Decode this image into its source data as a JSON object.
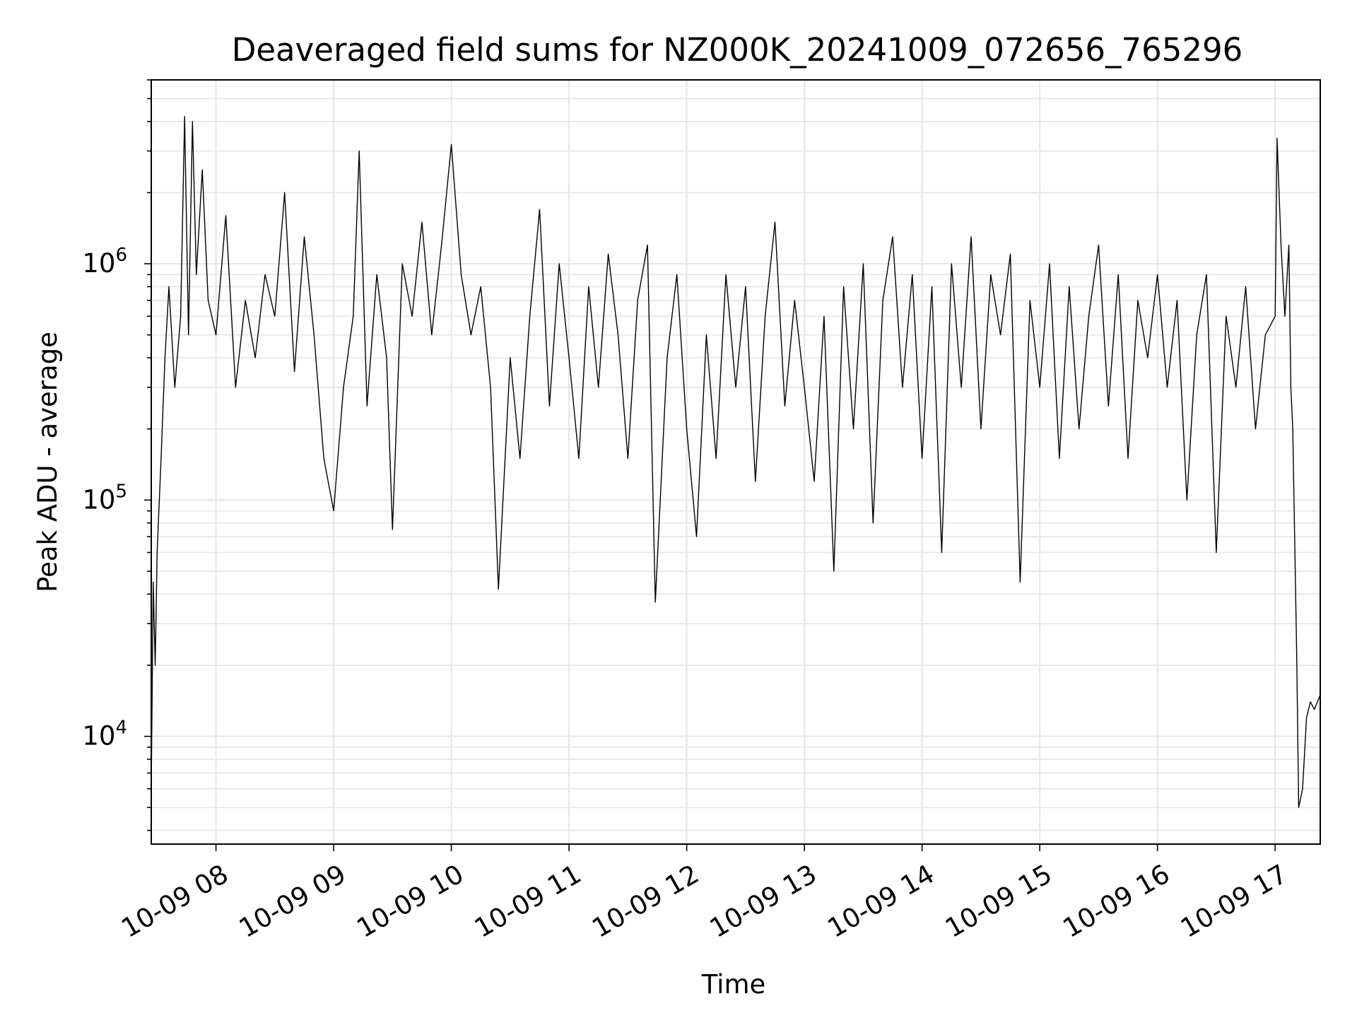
{
  "chart_data": {
    "type": "line",
    "title": "Deaveraged field sums for NZ000K_20241009_072656_765296",
    "xlabel": "Time",
    "ylabel": "Peak ADU - average",
    "yscale": "log",
    "xlim": [
      "10-09 07:27",
      "10-09 17:23"
    ],
    "ylim": [
      3500,
      6000000
    ],
    "grid": true,
    "line_color": "#000000",
    "grid_color": "#e6e6e6",
    "x_ticks": [
      {
        "time": "10-09 08:00",
        "label": "10-09 08"
      },
      {
        "time": "10-09 09:00",
        "label": "10-09 09"
      },
      {
        "time": "10-09 10:00",
        "label": "10-09 10"
      },
      {
        "time": "10-09 11:00",
        "label": "10-09 11"
      },
      {
        "time": "10-09 12:00",
        "label": "10-09 12"
      },
      {
        "time": "10-09 13:00",
        "label": "10-09 13"
      },
      {
        "time": "10-09 14:00",
        "label": "10-09 14"
      },
      {
        "time": "10-09 15:00",
        "label": "10-09 15"
      },
      {
        "time": "10-09 16:00",
        "label": "10-09 16"
      },
      {
        "time": "10-09 17:00",
        "label": "10-09 17"
      }
    ],
    "y_ticks": [
      {
        "value": 10000,
        "base": "10",
        "exp": "4"
      },
      {
        "value": 100000,
        "base": "10",
        "exp": "5"
      },
      {
        "value": 1000000,
        "base": "10",
        "exp": "6"
      }
    ],
    "series": [
      {
        "points": [
          [
            "10-09 07:27",
            6000
          ],
          [
            "10-09 07:28",
            45000
          ],
          [
            "10-09 07:29",
            20000
          ],
          [
            "10-09 07:30",
            60000
          ],
          [
            "10-09 07:32",
            150000
          ],
          [
            "10-09 07:34",
            400000
          ],
          [
            "10-09 07:36",
            800000
          ],
          [
            "10-09 07:39",
            300000
          ],
          [
            "10-09 07:42",
            600000
          ],
          [
            "10-09 07:44",
            4200000
          ],
          [
            "10-09 07:46",
            500000
          ],
          [
            "10-09 07:48",
            4000000
          ],
          [
            "10-09 07:50",
            900000
          ],
          [
            "10-09 07:53",
            2500000
          ],
          [
            "10-09 07:56",
            700000
          ],
          [
            "10-09 08:00",
            500000
          ],
          [
            "10-09 08:05",
            1600000
          ],
          [
            "10-09 08:10",
            300000
          ],
          [
            "10-09 08:15",
            700000
          ],
          [
            "10-09 08:20",
            400000
          ],
          [
            "10-09 08:25",
            900000
          ],
          [
            "10-09 08:30",
            600000
          ],
          [
            "10-09 08:35",
            2000000
          ],
          [
            "10-09 08:40",
            350000
          ],
          [
            "10-09 08:45",
            1300000
          ],
          [
            "10-09 08:50",
            500000
          ],
          [
            "10-09 08:55",
            150000
          ],
          [
            "10-09 09:00",
            90000
          ],
          [
            "10-09 09:05",
            300000
          ],
          [
            "10-09 09:10",
            600000
          ],
          [
            "10-09 09:13",
            3000000
          ],
          [
            "10-09 09:17",
            250000
          ],
          [
            "10-09 09:22",
            900000
          ],
          [
            "10-09 09:27",
            400000
          ],
          [
            "10-09 09:30",
            75000
          ],
          [
            "10-09 09:35",
            1000000
          ],
          [
            "10-09 09:40",
            600000
          ],
          [
            "10-09 09:45",
            1500000
          ],
          [
            "10-09 09:50",
            500000
          ],
          [
            "10-09 09:55",
            1200000
          ],
          [
            "10-09 10:00",
            3200000
          ],
          [
            "10-09 10:05",
            900000
          ],
          [
            "10-09 10:10",
            500000
          ],
          [
            "10-09 10:15",
            800000
          ],
          [
            "10-09 10:20",
            300000
          ],
          [
            "10-09 10:24",
            42000
          ],
          [
            "10-09 10:30",
            400000
          ],
          [
            "10-09 10:35",
            150000
          ],
          [
            "10-09 10:40",
            600000
          ],
          [
            "10-09 10:45",
            1700000
          ],
          [
            "10-09 10:50",
            250000
          ],
          [
            "10-09 10:55",
            1000000
          ],
          [
            "10-09 11:00",
            400000
          ],
          [
            "10-09 11:05",
            150000
          ],
          [
            "10-09 11:10",
            800000
          ],
          [
            "10-09 11:15",
            300000
          ],
          [
            "10-09 11:20",
            1100000
          ],
          [
            "10-09 11:25",
            500000
          ],
          [
            "10-09 11:30",
            150000
          ],
          [
            "10-09 11:35",
            700000
          ],
          [
            "10-09 11:40",
            1200000
          ],
          [
            "10-09 11:44",
            37000
          ],
          [
            "10-09 11:50",
            400000
          ],
          [
            "10-09 11:55",
            900000
          ],
          [
            "10-09 12:00",
            200000
          ],
          [
            "10-09 12:05",
            70000
          ],
          [
            "10-09 12:10",
            500000
          ],
          [
            "10-09 12:15",
            150000
          ],
          [
            "10-09 12:20",
            900000
          ],
          [
            "10-09 12:25",
            300000
          ],
          [
            "10-09 12:30",
            800000
          ],
          [
            "10-09 12:35",
            120000
          ],
          [
            "10-09 12:40",
            600000
          ],
          [
            "10-09 12:45",
            1500000
          ],
          [
            "10-09 12:50",
            250000
          ],
          [
            "10-09 12:55",
            700000
          ],
          [
            "10-09 13:00",
            300000
          ],
          [
            "10-09 13:05",
            120000
          ],
          [
            "10-09 13:10",
            600000
          ],
          [
            "10-09 13:15",
            50000
          ],
          [
            "10-09 13:20",
            800000
          ],
          [
            "10-09 13:25",
            200000
          ],
          [
            "10-09 13:30",
            1000000
          ],
          [
            "10-09 13:35",
            80000
          ],
          [
            "10-09 13:40",
            700000
          ],
          [
            "10-09 13:45",
            1300000
          ],
          [
            "10-09 13:50",
            300000
          ],
          [
            "10-09 13:55",
            900000
          ],
          [
            "10-09 14:00",
            150000
          ],
          [
            "10-09 14:05",
            800000
          ],
          [
            "10-09 14:10",
            60000
          ],
          [
            "10-09 14:15",
            1000000
          ],
          [
            "10-09 14:20",
            300000
          ],
          [
            "10-09 14:25",
            1300000
          ],
          [
            "10-09 14:30",
            200000
          ],
          [
            "10-09 14:35",
            900000
          ],
          [
            "10-09 14:40",
            500000
          ],
          [
            "10-09 14:45",
            1100000
          ],
          [
            "10-09 14:50",
            45000
          ],
          [
            "10-09 14:55",
            700000
          ],
          [
            "10-09 15:00",
            300000
          ],
          [
            "10-09 15:05",
            1000000
          ],
          [
            "10-09 15:10",
            150000
          ],
          [
            "10-09 15:15",
            800000
          ],
          [
            "10-09 15:20",
            200000
          ],
          [
            "10-09 15:25",
            600000
          ],
          [
            "10-09 15:30",
            1200000
          ],
          [
            "10-09 15:35",
            250000
          ],
          [
            "10-09 15:40",
            900000
          ],
          [
            "10-09 15:45",
            150000
          ],
          [
            "10-09 15:50",
            700000
          ],
          [
            "10-09 15:55",
            400000
          ],
          [
            "10-09 16:00",
            900000
          ],
          [
            "10-09 16:05",
            300000
          ],
          [
            "10-09 16:10",
            700000
          ],
          [
            "10-09 16:15",
            100000
          ],
          [
            "10-09 16:20",
            500000
          ],
          [
            "10-09 16:25",
            900000
          ],
          [
            "10-09 16:30",
            60000
          ],
          [
            "10-09 16:35",
            600000
          ],
          [
            "10-09 16:40",
            300000
          ],
          [
            "10-09 16:45",
            800000
          ],
          [
            "10-09 16:50",
            200000
          ],
          [
            "10-09 16:55",
            500000
          ],
          [
            "10-09 17:00",
            600000
          ],
          [
            "10-09 17:01",
            3400000
          ],
          [
            "10-09 17:03",
            1200000
          ],
          [
            "10-09 17:05",
            600000
          ],
          [
            "10-09 17:07",
            1200000
          ],
          [
            "10-09 17:08",
            300000
          ],
          [
            "10-09 17:09",
            200000
          ],
          [
            "10-09 17:11",
            22000
          ],
          [
            "10-09 17:12",
            5000
          ],
          [
            "10-09 17:14",
            6000
          ],
          [
            "10-09 17:16",
            12000
          ],
          [
            "10-09 17:18",
            14000
          ],
          [
            "10-09 17:20",
            13000
          ],
          [
            "10-09 17:23",
            15000
          ]
        ]
      }
    ]
  }
}
